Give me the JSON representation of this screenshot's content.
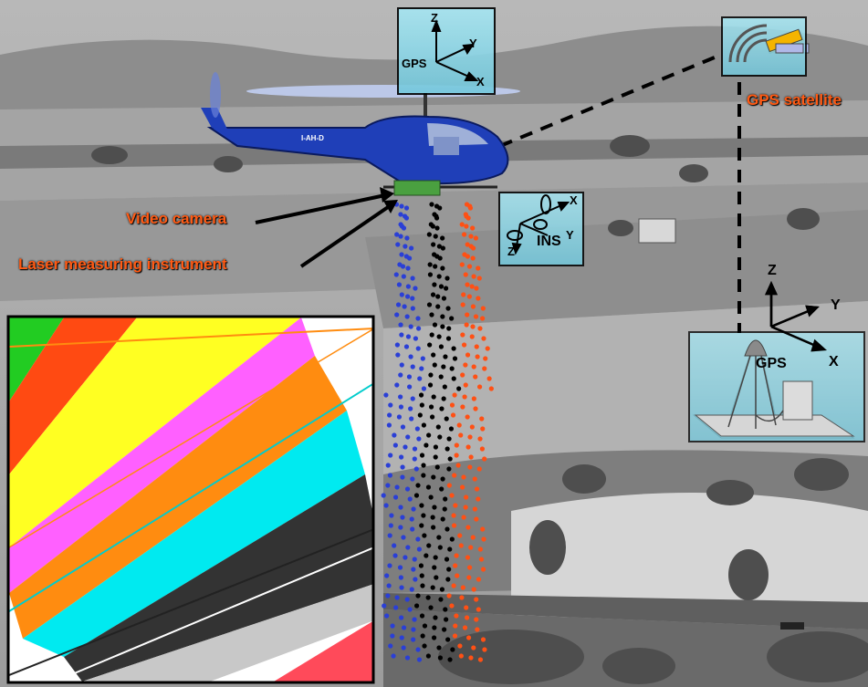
{
  "labels": {
    "video_camera": "Video camera",
    "laser_instrument": "Laser measuring instrument",
    "gps_satellite": "GPS satellite"
  },
  "gps_air_box": {
    "z": "Z",
    "y": "Y",
    "x": "X",
    "gps": "GPS"
  },
  "ins_box": {
    "x": "X",
    "y": "Y",
    "z": "Z",
    "ins": "INS"
  },
  "ground_station": {
    "z": "Z",
    "y": "Y",
    "x": "X",
    "gps": "GPS"
  },
  "helicopter": {
    "registration": "I-AH-D"
  },
  "colors": {
    "label_orange": "#ff5a14",
    "box_cyan": "#8fdcec",
    "laser_blue": "#2a3fd6",
    "laser_black": "#000000",
    "laser_orange": "#ff5014",
    "helicopter_blue": "#1f3fb8"
  },
  "icons": [
    "helicopter-icon",
    "satellite-icon",
    "gps-antenna-icon",
    "receiver-box-icon",
    "axis-triad-icon"
  ]
}
